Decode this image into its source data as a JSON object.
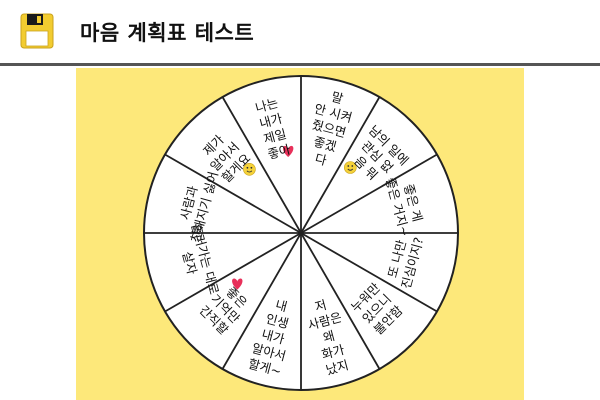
{
  "header": {
    "title": "마음 계획표 테스트",
    "icon": "floppy-disk-icon"
  },
  "colors": {
    "board_background": "#fde87a",
    "wheel_fill": "#ffffff",
    "wheel_stroke": "#222222",
    "heart": "#e8305a",
    "smiley": "#f5d23a",
    "icon_yellow": "#f2cc30"
  },
  "wheel": {
    "segments": [
      {
        "id": "top-right",
        "text": "말\n안 시켜\n줬으면\n좋겠\n다",
        "sticker": "none"
      },
      {
        "id": "upper-right-1",
        "text": "남의 일에\n관심 없\n음 뭐",
        "sticker": "smiley-icon"
      },
      {
        "id": "upper-right-2",
        "text": "좋은 게\n좋은 거지~",
        "sticker": "none"
      },
      {
        "id": "right",
        "text": "또 나만\n진심이지?",
        "sticker": "none"
      },
      {
        "id": "lower-right",
        "text": "누워만\n있으니\n불안함",
        "sticker": "none"
      },
      {
        "id": "bottom-right",
        "text": "저\n사람은\n왜\n화가\n났지",
        "sticker": "none"
      },
      {
        "id": "bottom-left",
        "text": "내\n인생\n내가\n알아서\n할게~",
        "sticker": "none"
      },
      {
        "id": "lower-left",
        "text": "좋은\n기억만\n간직할",
        "sticker": "heart-icon"
      },
      {
        "id": "left",
        "text": "흘러가는 대로\n살자",
        "sticker": "none"
      },
      {
        "id": "upper-left-1",
        "text": "사람과\n친해지기 싫어",
        "sticker": "none"
      },
      {
        "id": "upper-left-2",
        "text": "제가\n알아서\n할게요",
        "sticker": "smiley-icon"
      },
      {
        "id": "top-left",
        "text": "나는\n내가\n제일\n좋아",
        "sticker": "heart-icon"
      }
    ]
  }
}
